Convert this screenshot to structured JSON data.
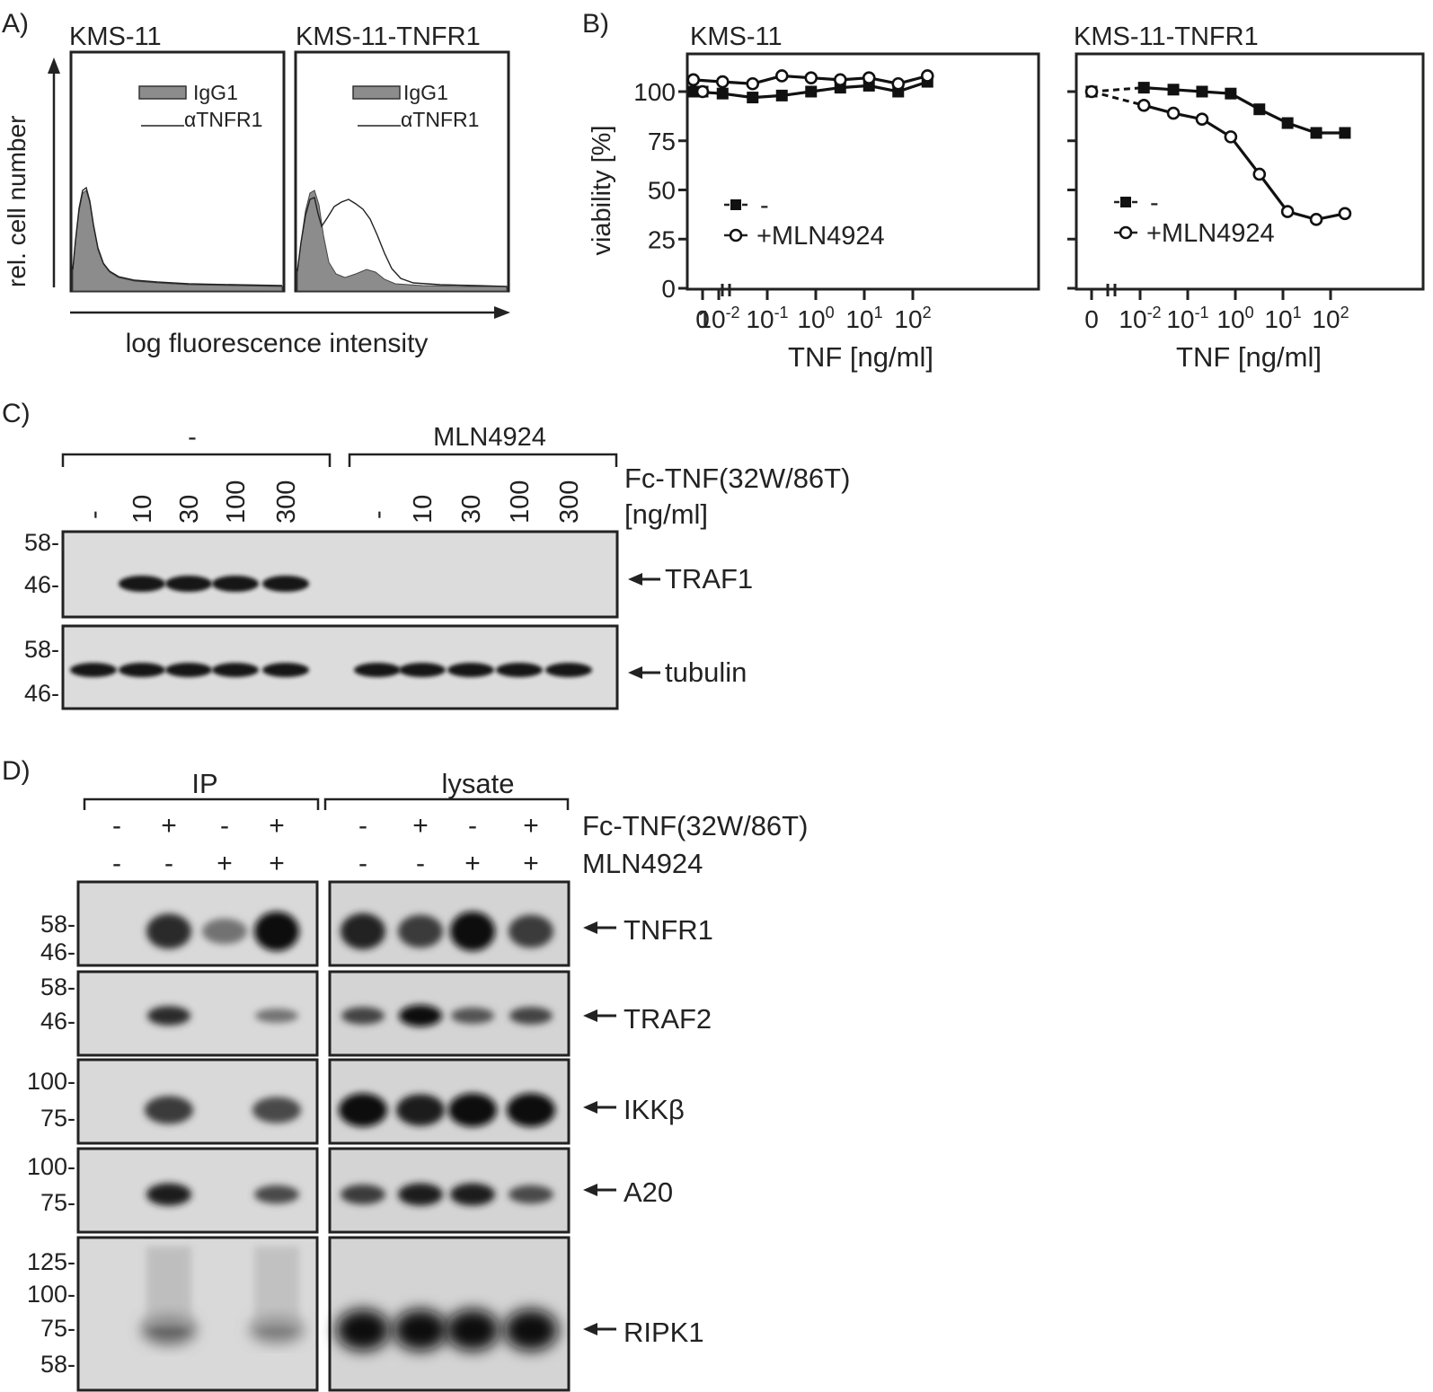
{
  "panelA": {
    "letter": "A)",
    "titles": [
      "KMS-11",
      "KMS-11-TNFR1"
    ],
    "ylabel": "rel. cell number",
    "xlabel": "log fluorescence intensity",
    "legend": [
      "IgG1",
      "αTNFR1"
    ]
  },
  "panelB": {
    "letter": "B)",
    "titles": [
      "KMS-11",
      "KMS-11-TNFR1"
    ],
    "ylabel": "viability [%]",
    "xlabel": "TNF [ng/ml]",
    "yticks": [
      "0",
      "25",
      "50",
      "75",
      "100"
    ],
    "zero_tick": "0",
    "legend": [
      "-",
      "+MLN4924"
    ]
  },
  "chart_data": [
    {
      "type": "line",
      "title": "KMS-11",
      "xlabel": "TNF [ng/ml]",
      "ylabel": "viability [%]",
      "xscale": "log",
      "ylim": [
        0,
        115
      ],
      "x": [
        0,
        0.003,
        0.012,
        0.05,
        0.2,
        0.8,
        3.2,
        12.5,
        50,
        200
      ],
      "series": [
        {
          "name": "-",
          "marker": "filled-square",
          "values": [
            100,
            100,
            99,
            97,
            98,
            100,
            102,
            103,
            100,
            105
          ]
        },
        {
          "name": "+MLN4924",
          "marker": "open-circle",
          "values": [
            100,
            106,
            105,
            104,
            108,
            107,
            106,
            107,
            104,
            108
          ]
        }
      ]
    },
    {
      "type": "line",
      "title": "KMS-11-TNFR1",
      "xlabel": "TNF [ng/ml]",
      "ylabel": "viability [%]",
      "xscale": "log",
      "ylim": [
        0,
        115
      ],
      "x": [
        0,
        0.012,
        0.05,
        0.2,
        0.8,
        3.2,
        12.5,
        50,
        200
      ],
      "series": [
        {
          "name": "-",
          "marker": "filled-square",
          "values": [
            100,
            102,
            101,
            100,
            99,
            91,
            84,
            79,
            79
          ]
        },
        {
          "name": "+MLN4924",
          "marker": "open-circle",
          "values": [
            100,
            93,
            89,
            86,
            77,
            58,
            39,
            35,
            38
          ]
        }
      ]
    }
  ],
  "panelC": {
    "letter": "C)",
    "group_labels": [
      "-",
      "MLN4924"
    ],
    "treatment_label": "Fc-TNF(32W/86T)",
    "unit_label": "[ng/ml]",
    "lanes": [
      "-",
      "10",
      "30",
      "100",
      "300",
      "-",
      "10",
      "30",
      "100",
      "300"
    ],
    "blots": [
      {
        "name": "TRAF1",
        "markers": [
          "58-",
          "46-"
        ],
        "bands": [
          0,
          1,
          1,
          1,
          1,
          0,
          0,
          0,
          0,
          0
        ]
      },
      {
        "name": "tubulin",
        "markers": [
          "58-",
          "46-"
        ],
        "bands": [
          1,
          1,
          1,
          1,
          1,
          1,
          1,
          1,
          1,
          1
        ]
      }
    ]
  },
  "panelD": {
    "letter": "D)",
    "group_labels": [
      "IP",
      "lysate"
    ],
    "row_labels": [
      "Fc-TNF(32W/86T)",
      "MLN4924"
    ],
    "row1": [
      "-",
      "+",
      "-",
      "+",
      "-",
      "+",
      "-",
      "+"
    ],
    "row2": [
      "-",
      "-",
      "+",
      "+",
      "-",
      "-",
      "+",
      "+"
    ],
    "blots": [
      {
        "name": "TNFR1",
        "markers": [
          "58-",
          "46-"
        ],
        "ip": [
          0,
          0.8,
          0.35,
          1
        ],
        "lysate": [
          0.85,
          0.7,
          1,
          0.7
        ]
      },
      {
        "name": "TRAF2",
        "markers": [
          "58-",
          "46-"
        ],
        "ip": [
          0,
          0.8,
          0,
          0.35
        ],
        "lysate": [
          0.65,
          1,
          0.55,
          0.65
        ]
      },
      {
        "name": "IKKβ",
        "markers": [
          "100-",
          "75-"
        ],
        "ip": [
          0,
          0.7,
          0,
          0.6
        ],
        "lysate": [
          1,
          0.9,
          1,
          1
        ]
      },
      {
        "name": "A20",
        "markers": [
          "100-",
          "75-"
        ],
        "ip": [
          0,
          0.9,
          0,
          0.6
        ],
        "lysate": [
          0.7,
          0.9,
          0.9,
          0.6
        ]
      },
      {
        "name": "RIPK1",
        "markers": [
          "125-",
          "100-",
          "75-",
          "58-"
        ],
        "ip": [
          0,
          0.45,
          0,
          0.3
        ],
        "lysate": [
          1,
          1,
          1,
          1
        ]
      }
    ]
  }
}
